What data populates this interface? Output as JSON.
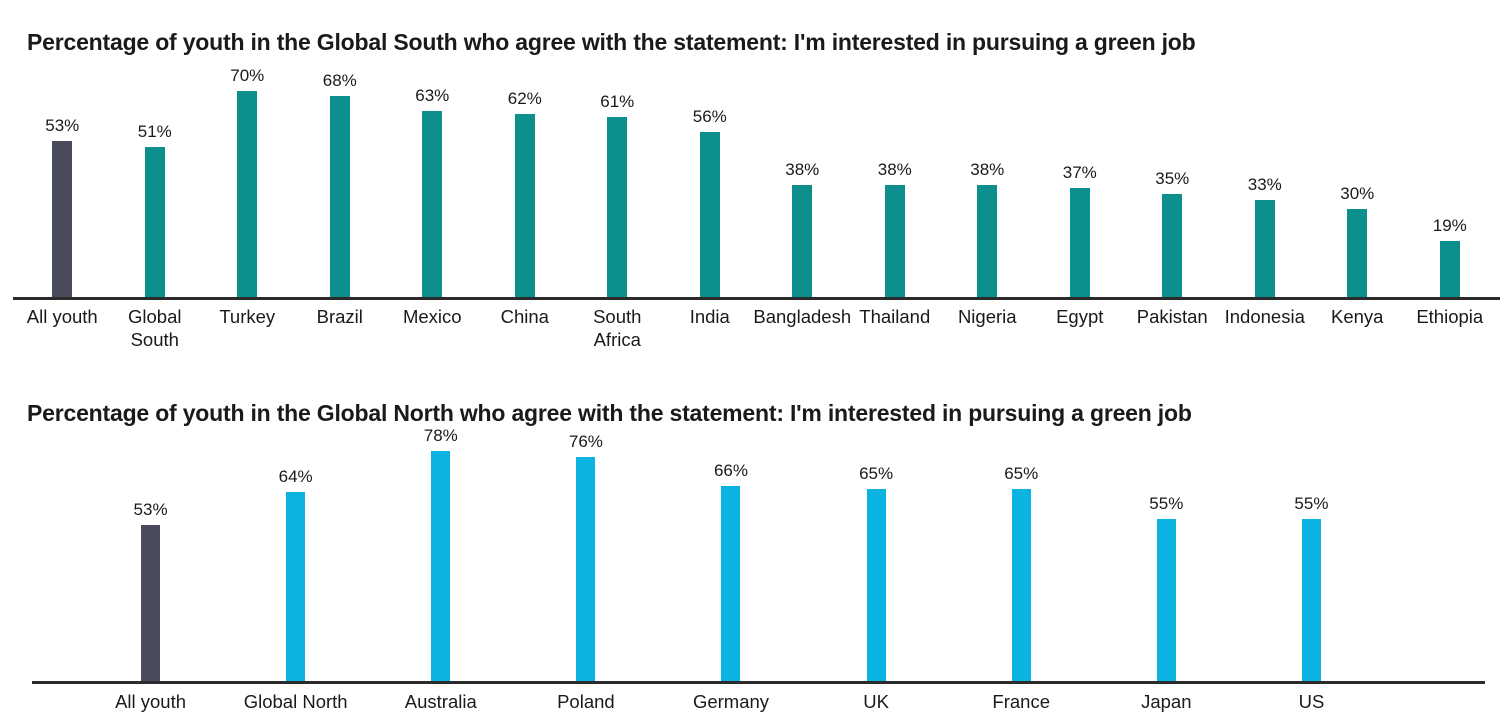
{
  "colors": {
    "all_youth_bar": "#494a5c",
    "global_south_bar": "#0d8f8d",
    "global_north_bar": "#0bb3e3",
    "text": "#1a1a1a",
    "axis_line": "#2b2b2b",
    "background": "#ffffff"
  },
  "chart_data": [
    {
      "type": "bar",
      "title": "Percentage of youth in the Global South who agree with the statement: I'm interested in pursuing a green job",
      "categories": [
        "All youth",
        "Global South",
        "Turkey",
        "Brazil",
        "Mexico",
        "China",
        "South Africa",
        "India",
        "Bangladesh",
        "Thailand",
        "Nigeria",
        "Egypt",
        "Pakistan",
        "Indonesia",
        "Kenya",
        "Ethiopia"
      ],
      "category_display": [
        "All youth",
        "Global\nSouth",
        "Turkey",
        "Brazil",
        "Mexico",
        "China",
        "South\nAfrica",
        "India",
        "Bangladesh",
        "Thailand",
        "Nigeria",
        "Egypt",
        "Pakistan",
        "Indonesia",
        "Kenya",
        "Ethiopia"
      ],
      "values": [
        53,
        51,
        70,
        68,
        63,
        62,
        61,
        56,
        38,
        38,
        38,
        37,
        35,
        33,
        30,
        19
      ],
      "value_labels": [
        "53%",
        "51%",
        "70%",
        "68%",
        "63%",
        "62%",
        "61%",
        "56%",
        "38%",
        "38%",
        "38%",
        "37%",
        "35%",
        "33%",
        "30%",
        "19%"
      ],
      "bar_colors": [
        "#494a5c",
        "#0d8f8d",
        "#0d8f8d",
        "#0d8f8d",
        "#0d8f8d",
        "#0d8f8d",
        "#0d8f8d",
        "#0d8f8d",
        "#0d8f8d",
        "#0d8f8d",
        "#0d8f8d",
        "#0d8f8d",
        "#0d8f8d",
        "#0d8f8d",
        "#0d8f8d",
        "#0d8f8d"
      ],
      "xlabel": "",
      "ylabel": "",
      "ylim": [
        0,
        80
      ],
      "grid": false,
      "legend": "none",
      "value_suffix": "%"
    },
    {
      "type": "bar",
      "title": "Percentage of youth in the Global North who agree with the statement: I'm interested in pursuing a green job",
      "categories": [
        "All youth",
        "Global North",
        "Australia",
        "Poland",
        "Germany",
        "UK",
        "France",
        "Japan",
        "US"
      ],
      "category_display": [
        "All youth",
        "Global North",
        "Australia",
        "Poland",
        "Germany",
        "UK",
        "France",
        "Japan",
        "US"
      ],
      "values": [
        53,
        64,
        78,
        76,
        66,
        65,
        65,
        55,
        55
      ],
      "value_labels": [
        "53%",
        "64%",
        "78%",
        "76%",
        "66%",
        "65%",
        "65%",
        "55%",
        "55%"
      ],
      "bar_colors": [
        "#494a5c",
        "#0bb3e3",
        "#0bb3e3",
        "#0bb3e3",
        "#0bb3e3",
        "#0bb3e3",
        "#0bb3e3",
        "#0bb3e3",
        "#0bb3e3"
      ],
      "xlabel": "",
      "ylabel": "",
      "ylim": [
        0,
        80
      ],
      "grid": false,
      "legend": "none",
      "value_suffix": "%"
    }
  ]
}
